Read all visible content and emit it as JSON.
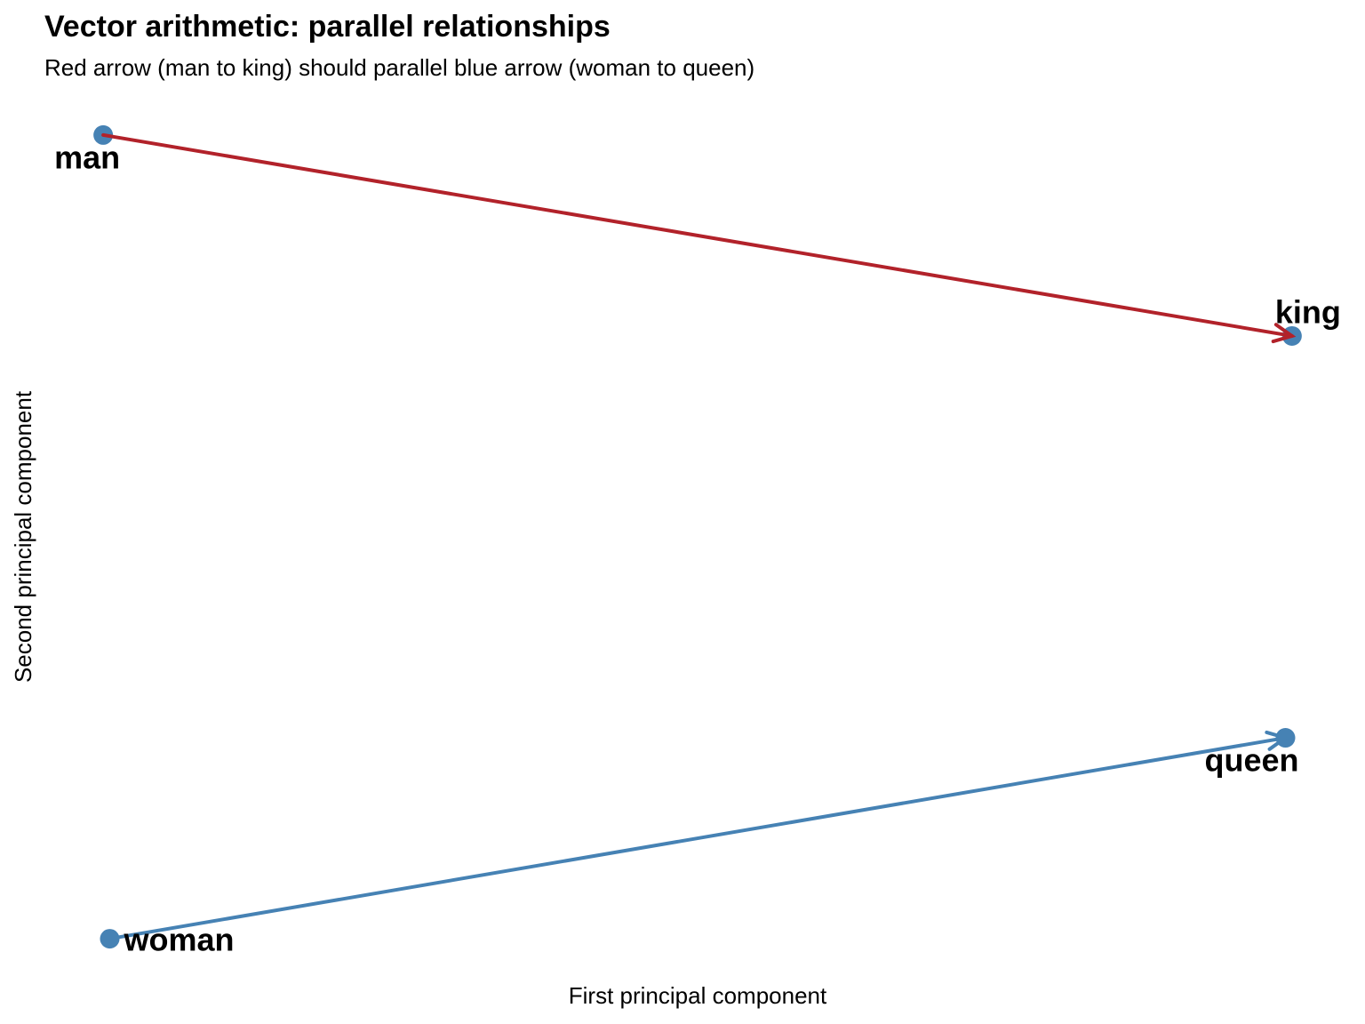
{
  "chart_data": {
    "type": "arrow-scatter",
    "title": "Vector arithmetic: parallel relationships",
    "subtitle": "Red arrow (man to king) should parallel blue arrow (woman to queen)",
    "xlabel": "First principal component",
    "ylabel": "Second principal component",
    "point_color": "#4682b4",
    "points": [
      {
        "label": "man",
        "x": -0.91,
        "y": 0.906
      },
      {
        "label": "king",
        "x": 0.91,
        "y": 0.453
      },
      {
        "label": "queen",
        "x": 0.9,
        "y": -0.453
      },
      {
        "label": "woman",
        "x": -0.9,
        "y": -0.906
      }
    ],
    "arrows": [
      {
        "from": "man",
        "to": "king",
        "color": "#b2222a"
      },
      {
        "from": "woman",
        "to": "queen",
        "color": "#4682b4"
      }
    ],
    "xlim": [
      -1,
      1
    ],
    "ylim": [
      -1,
      1
    ],
    "grid": false
  }
}
